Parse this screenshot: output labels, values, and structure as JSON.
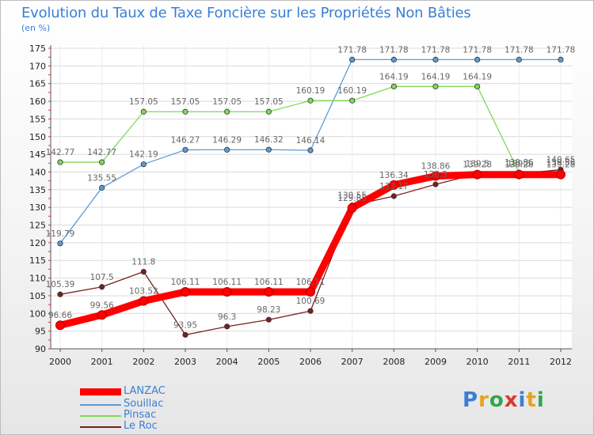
{
  "title": "Evolution du Taux de Taxe Foncière sur les Propriétés Non Bâties",
  "unit_label": "(en %)",
  "brand": {
    "letters": [
      "P",
      "r",
      "o",
      "x",
      "i",
      "t",
      "i"
    ],
    "colors": [
      "#3a7fd6",
      "#e8a21c",
      "#2fa64b",
      "#d93a2e",
      "#3a7fd6",
      "#e8a21c",
      "#2fa64b"
    ]
  },
  "chart_data": {
    "type": "line",
    "title": "Evolution du Taux de Taxe Foncière sur les Propriétés Non Bâties",
    "ylabel": "(en %)",
    "xlabel": "",
    "categories": [
      "2000",
      "2001",
      "2002",
      "2003",
      "2004",
      "2005",
      "2006",
      "2007",
      "2008",
      "2009",
      "2010",
      "2011",
      "2012"
    ],
    "ylim": [
      90,
      175
    ],
    "yticks": [
      90,
      95,
      100,
      105,
      110,
      115,
      120,
      125,
      130,
      135,
      140,
      145,
      150,
      155,
      160,
      165,
      170,
      175
    ],
    "series": [
      {
        "name": "LANZAC",
        "color": "#ff0000",
        "values": [
          96.66,
          99.56,
          103.52,
          106.11,
          106.11,
          106.11,
          106.11,
          129.85,
          136.34,
          138.86,
          139.28,
          139.28,
          139.28
        ],
        "labels": [
          "96.66",
          "99.56",
          "103.52",
          "106.11",
          "106.11",
          "106.11",
          "106.11",
          "129.85",
          "136.34",
          "138.86",
          "139.28",
          "139.28",
          "139.28"
        ]
      },
      {
        "name": "Souillac",
        "color": "#5b9bd5",
        "values": [
          119.79,
          135.55,
          142.19,
          146.27,
          146.29,
          146.32,
          146.14,
          171.78,
          171.78,
          171.78,
          171.78,
          171.78,
          171.78
        ],
        "labels": [
          "119.79",
          "135.55",
          "142.19",
          "146.27",
          "146.29",
          "146.32",
          "146.14",
          "171.78",
          "171.78",
          "171.78",
          "171.78",
          "171.78",
          "171.78"
        ]
      },
      {
        "name": "Pinsac",
        "color": "#7ed957",
        "values": [
          142.77,
          142.77,
          157.05,
          157.05,
          157.05,
          157.05,
          160.19,
          160.19,
          164.19,
          164.19,
          164.19,
          139.86,
          139.86
        ],
        "labels": [
          "142.77",
          "142.77",
          "157.05",
          "157.05",
          "157.05",
          "157.05",
          "160.19",
          "160.19",
          "164.19",
          "164.19",
          "164.19",
          "139.86",
          "139.86"
        ]
      },
      {
        "name": "Le Roc",
        "color": "#7a1f1f",
        "values": [
          105.39,
          107.5,
          111.8,
          93.95,
          96.3,
          98.23,
          100.69,
          130.55,
          133.17,
          136.5,
          139.5,
          139.5,
          140.65
        ],
        "labels": [
          "105.39",
          "107.5",
          "111.8",
          "93.95",
          "96.3",
          "98.23",
          "100.69",
          "130.55",
          "133.17",
          "136.5",
          "139.5",
          "139.5",
          "140.65"
        ]
      }
    ]
  }
}
